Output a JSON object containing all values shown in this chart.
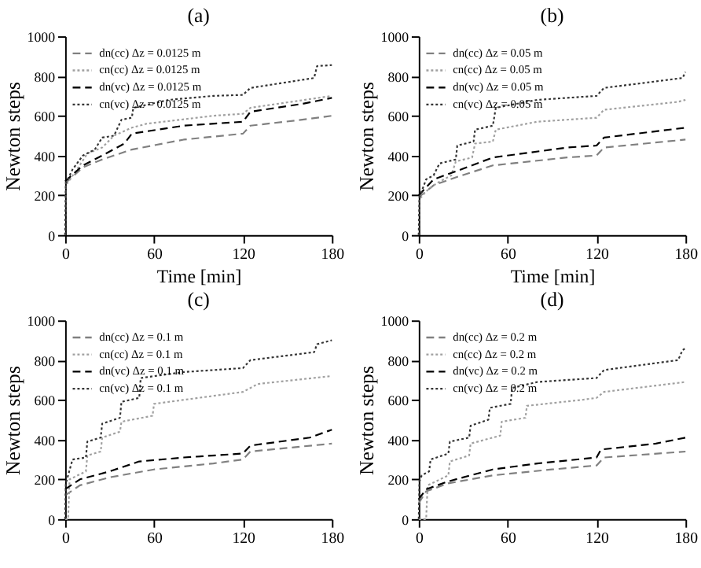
{
  "chart_data": [
    {
      "type": "line",
      "title": "(a)",
      "xlabel": "Time [min]",
      "ylabel": "Newton steps",
      "xlim": [
        0,
        180
      ],
      "ylim": [
        0,
        1000
      ],
      "xticks": [
        0,
        60,
        120,
        180
      ],
      "yticks": [
        0,
        200,
        400,
        600,
        800,
        1000
      ],
      "grid": false,
      "legend": "top left",
      "marker": "none",
      "series": [
        {
          "name": "dn(cc) Δz = 0.0125 m",
          "color": "#808080",
          "line_style": "dashed",
          "x": [
            0,
            12,
            25,
            45,
            80,
            120,
            125,
            160,
            180
          ],
          "values": [
            260,
            340,
            380,
            430,
            480,
            510,
            550,
            580,
            600
          ]
        },
        {
          "name": "cn(cc) Δz = 0.0125 m",
          "color": "#a0a0a0",
          "line_style": "dotted",
          "x": [
            0,
            0.5,
            8,
            15,
            25,
            33,
            45,
            55,
            100,
            120,
            125,
            180
          ],
          "values": [
            0,
            250,
            330,
            410,
            440,
            500,
            540,
            560,
            600,
            610,
            640,
            700
          ]
        },
        {
          "name": "dn(vc) Δz = 0.0125 m",
          "color": "#000000",
          "line_style": "dashed",
          "x": [
            0,
            12,
            25,
            40,
            45,
            80,
            120,
            125,
            160,
            180
          ],
          "values": [
            270,
            350,
            400,
            460,
            510,
            550,
            570,
            620,
            660,
            690
          ]
        },
        {
          "name": "cn(vc) Δz = 0.0125 m",
          "color": "#333333",
          "line_style": "dotted",
          "x": [
            0,
            0.5,
            5,
            12,
            20,
            25,
            33,
            38,
            45,
            46,
            70,
            100,
            120,
            125,
            168,
            170,
            180
          ],
          "values": [
            0,
            260,
            330,
            400,
            430,
            490,
            500,
            580,
            590,
            640,
            680,
            700,
            705,
            740,
            790,
            850,
            855
          ]
        }
      ]
    },
    {
      "type": "line",
      "title": "(b)",
      "xlabel": "Time [min]",
      "ylabel": "Newton steps",
      "xlim": [
        0,
        180
      ],
      "ylim": [
        0,
        1000
      ],
      "xticks": [
        0,
        60,
        120,
        180
      ],
      "yticks": [
        0,
        200,
        400,
        600,
        800,
        1000
      ],
      "grid": false,
      "legend": "top left",
      "marker": "none",
      "series": [
        {
          "name": "dn(cc) Δz = 0.05 m",
          "color": "#808080",
          "line_style": "dashed",
          "x": [
            0,
            10,
            25,
            50,
            100,
            120,
            125,
            180
          ],
          "values": [
            190,
            250,
            290,
            350,
            390,
            400,
            440,
            480
          ]
        },
        {
          "name": "cn(cc) Δz = 0.05 m",
          "color": "#a0a0a0",
          "line_style": "dotted",
          "x": [
            0,
            0.5,
            5,
            12,
            22,
            25,
            36,
            38,
            50,
            52,
            80,
            120,
            125,
            175,
            180
          ],
          "values": [
            0,
            180,
            220,
            260,
            300,
            370,
            390,
            460,
            470,
            530,
            570,
            590,
            630,
            670,
            680
          ]
        },
        {
          "name": "dn(vc) Δz = 0.05 m",
          "color": "#000000",
          "line_style": "dashed",
          "x": [
            0,
            10,
            25,
            50,
            100,
            120,
            125,
            180
          ],
          "values": [
            200,
            280,
            320,
            390,
            440,
            450,
            490,
            540
          ]
        },
        {
          "name": "cn(vc) Δz = 0.05 m",
          "color": "#333333",
          "line_style": "dotted",
          "x": [
            0,
            0.5,
            5,
            10,
            14,
            25,
            26,
            37,
            38,
            50,
            52,
            80,
            120,
            125,
            178,
            180
          ],
          "values": [
            0,
            190,
            280,
            300,
            360,
            380,
            450,
            470,
            530,
            550,
            640,
            680,
            700,
            740,
            790,
            820
          ]
        }
      ]
    },
    {
      "type": "line",
      "title": "(c)",
      "ylabel": "Newton steps",
      "xlim": [
        0,
        180
      ],
      "ylim": [
        0,
        1000
      ],
      "xticks": [
        0,
        60,
        120,
        180
      ],
      "yticks": [
        0,
        200,
        400,
        600,
        800,
        1000
      ],
      "grid": false,
      "legend": "top left",
      "marker": "none",
      "series": [
        {
          "name": "dn(cc) Δz = 0.1 m",
          "color": "#808080",
          "line_style": "dashed",
          "x": [
            0,
            10,
            30,
            60,
            100,
            120,
            125,
            180
          ],
          "values": [
            120,
            170,
            210,
            250,
            280,
            300,
            340,
            380
          ]
        },
        {
          "name": "cn(cc) Δz = 0.1 m",
          "color": "#a0a0a0",
          "line_style": "dotted",
          "x": [
            0,
            2,
            3,
            14,
            15,
            24,
            25,
            37,
            38,
            59,
            60,
            100,
            120,
            130,
            180
          ],
          "values": [
            0,
            0,
            200,
            240,
            320,
            340,
            410,
            440,
            490,
            520,
            580,
            620,
            640,
            680,
            720
          ]
        },
        {
          "name": "dn(vc) Δz = 0.1 m",
          "color": "#000000",
          "line_style": "dashed",
          "x": [
            0,
            10,
            30,
            50,
            80,
            120,
            125,
            165,
            180
          ],
          "values": [
            150,
            200,
            240,
            290,
            310,
            330,
            370,
            410,
            450
          ]
        },
        {
          "name": "cn(vc) Δz = 0.1 m",
          "color": "#333333",
          "line_style": "dotted",
          "x": [
            0,
            0.5,
            5,
            14,
            15,
            24,
            25,
            37,
            38,
            50,
            51,
            80,
            120,
            125,
            168,
            170,
            180
          ],
          "values": [
            0,
            180,
            300,
            310,
            390,
            410,
            480,
            510,
            590,
            610,
            710,
            740,
            760,
            800,
            840,
            880,
            900
          ]
        }
      ]
    },
    {
      "type": "line",
      "title": "(d)",
      "ylabel": "Newton steps",
      "xlim": [
        0,
        180
      ],
      "ylim": [
        0,
        1000
      ],
      "xticks": [
        0,
        60,
        120,
        180
      ],
      "yticks": [
        0,
        200,
        400,
        600,
        800,
        1000
      ],
      "grid": false,
      "legend": "top left",
      "marker": "none",
      "series": [
        {
          "name": "dn(cc) Δz = 0.2 m",
          "color": "#808080",
          "line_style": "dashed",
          "x": [
            0,
            5,
            20,
            50,
            90,
            120,
            125,
            180
          ],
          "values": [
            80,
            140,
            180,
            220,
            250,
            270,
            310,
            340
          ]
        },
        {
          "name": "cn(cc) Δz = 0.2 m",
          "color": "#a0a0a0",
          "line_style": "dotted",
          "x": [
            0,
            5,
            6,
            20,
            21,
            34,
            35,
            55,
            56,
            72,
            73,
            110,
            120,
            125,
            180
          ],
          "values": [
            0,
            0,
            170,
            220,
            290,
            320,
            380,
            420,
            490,
            510,
            570,
            600,
            610,
            640,
            690
          ]
        },
        {
          "name": "dn(vc) Δz = 0.2 m",
          "color": "#000000",
          "line_style": "dashed",
          "x": [
            0,
            5,
            20,
            50,
            80,
            120,
            123,
            160,
            180
          ],
          "values": [
            100,
            150,
            190,
            250,
            280,
            310,
            350,
            380,
            410
          ]
        },
        {
          "name": "cn(vc) Δz = 0.2 m",
          "color": "#333333",
          "line_style": "dotted",
          "x": [
            0,
            0.5,
            2,
            7,
            8,
            20,
            21,
            34,
            35,
            47,
            48,
            62,
            63,
            80,
            120,
            125,
            175,
            178,
            180
          ],
          "values": [
            0,
            190,
            220,
            240,
            300,
            330,
            390,
            410,
            470,
            500,
            560,
            580,
            660,
            690,
            710,
            750,
            800,
            850,
            860
          ]
        }
      ]
    }
  ]
}
